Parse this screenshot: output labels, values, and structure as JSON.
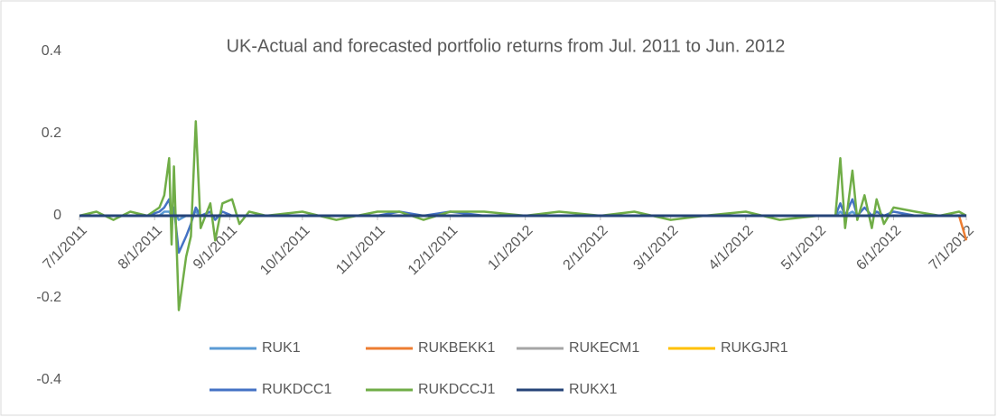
{
  "chart_data": {
    "type": "line",
    "title": "UK-Actual and forecasted portfolio returns from Jul. 2011 to Jun. 2012",
    "x": [
      "7/1/2011",
      "7/8/2011",
      "7/15/2011",
      "7/22/2011",
      "7/29/2011",
      "8/3/2011",
      "8/5/2011",
      "8/7/2011",
      "8/8/2011",
      "8/9/2011",
      "8/11/2011",
      "8/14/2011",
      "8/16/2011",
      "8/18/2011",
      "8/20/2011",
      "8/24/2011",
      "8/26/2011",
      "8/29/2011",
      "9/2/2011",
      "9/5/2011",
      "9/9/2011",
      "9/16/2011",
      "10/1/2011",
      "10/15/2011",
      "11/1/2011",
      "11/10/2011",
      "11/20/2011",
      "12/1/2011",
      "12/15/2011",
      "1/1/2012",
      "1/15/2012",
      "2/1/2012",
      "2/15/2012",
      "3/1/2012",
      "3/15/2012",
      "4/1/2012",
      "4/15/2012",
      "5/1/2012",
      "5/8/2012",
      "5/10/2012",
      "5/12/2012",
      "5/15/2012",
      "5/17/2012",
      "5/20/2012",
      "5/23/2012",
      "5/25/2012",
      "5/28/2012",
      "6/1/2012",
      "6/10/2012",
      "6/20/2012",
      "6/28/2012",
      "7/1/2012"
    ],
    "xticks": [
      "7/1/2011",
      "8/1/2011",
      "9/1/2011",
      "10/1/2011",
      "11/1/2011",
      "12/1/2011",
      "1/1/2012",
      "2/1/2012",
      "3/1/2012",
      "4/1/2012",
      "5/1/2012",
      "6/1/2012",
      "7/1/2012"
    ],
    "ylim": [
      -0.4,
      0.4
    ],
    "yticks": [
      0.4,
      0.2,
      0,
      -0.2,
      -0.4
    ],
    "grid": false,
    "series": [
      {
        "name": "RUK1",
        "color": "#5b9bd5",
        "values": [
          0,
          0,
          0,
          0,
          0,
          0,
          0.01,
          0.01,
          0,
          0.01,
          -0.01,
          0,
          0,
          0.01,
          0,
          0,
          0,
          0,
          0,
          0,
          0,
          0,
          0,
          0,
          0,
          0,
          0,
          0,
          0,
          0,
          0,
          0,
          0,
          0,
          0,
          0,
          0,
          0,
          0,
          0.01,
          0,
          0.01,
          0,
          0,
          0,
          0,
          0,
          0,
          0,
          0,
          0,
          0
        ]
      },
      {
        "name": "RUKBEKK1",
        "color": "#ed7d31",
        "values": [
          0,
          0,
          0,
          0,
          0,
          0,
          0,
          0,
          0,
          0,
          0,
          0,
          0,
          0,
          0,
          0,
          0,
          0,
          0,
          0,
          0,
          0,
          0,
          0,
          0,
          0,
          0,
          0,
          0,
          0,
          0,
          0,
          0,
          0,
          0,
          0,
          0,
          0,
          0,
          0,
          0,
          0,
          0,
          0,
          0,
          0,
          0,
          0,
          0,
          0,
          0,
          -0.06
        ]
      },
      {
        "name": "RUKECM1",
        "color": "#a5a5a5",
        "values": [
          0,
          0,
          0,
          0,
          0,
          0,
          0,
          0,
          0,
          0,
          0,
          0,
          0,
          0,
          0,
          0,
          0,
          0,
          0,
          0,
          0,
          0,
          0,
          0,
          0,
          0,
          0,
          0,
          0,
          0,
          0,
          0,
          0,
          0,
          0,
          0,
          0,
          0,
          0,
          0,
          0,
          0,
          0,
          0,
          0,
          0,
          0,
          0,
          0,
          0,
          0,
          0
        ]
      },
      {
        "name": "RUKGJR1",
        "color": "#ffc000",
        "values": [
          0,
          0,
          0,
          0,
          0,
          0,
          0,
          0,
          0,
          0,
          0,
          0,
          0,
          0,
          0,
          0,
          0,
          0,
          0,
          0,
          0,
          0,
          0,
          0,
          0,
          0,
          0,
          0,
          0,
          0,
          0,
          0,
          0,
          0,
          0,
          0,
          0,
          0,
          0,
          0,
          0,
          0,
          0,
          0,
          0,
          0,
          0,
          0,
          0,
          0,
          0,
          0
        ]
      },
      {
        "name": "RUKDCC1",
        "color": "#4472c4",
        "values": [
          0,
          0,
          0,
          0,
          0,
          0.01,
          0.02,
          0.04,
          0,
          0.02,
          -0.09,
          -0.05,
          -0.02,
          0.02,
          0,
          0.01,
          -0.01,
          0.01,
          0,
          0,
          0,
          0,
          0,
          0,
          0,
          0.01,
          0,
          0.01,
          0,
          0,
          0,
          0,
          0,
          0,
          0,
          0,
          0,
          0,
          0,
          0.03,
          0,
          0.04,
          0,
          0.02,
          0,
          0.01,
          0,
          0.01,
          0,
          0,
          0,
          0
        ]
      },
      {
        "name": "RUKDCCJ1",
        "color": "#70ad47",
        "values": [
          0,
          0.01,
          -0.01,
          0.01,
          0,
          0.02,
          0.05,
          0.14,
          -0.07,
          0.12,
          -0.23,
          -0.1,
          -0.05,
          0.23,
          -0.03,
          0.03,
          -0.06,
          0.03,
          0.04,
          -0.02,
          0.01,
          0,
          0.01,
          -0.01,
          0.01,
          0.01,
          -0.01,
          0.01,
          0.01,
          0,
          0.01,
          0,
          0.01,
          -0.01,
          0,
          0.01,
          -0.01,
          0,
          0,
          0.14,
          -0.03,
          0.11,
          -0.01,
          0.05,
          -0.03,
          0.04,
          -0.02,
          0.02,
          0.01,
          0,
          0.01,
          0
        ]
      },
      {
        "name": "RUKX1",
        "color": "#264478",
        "values": [
          0,
          0,
          0,
          0,
          0,
          0,
          0,
          0,
          0,
          0,
          0,
          0,
          0,
          0,
          0,
          0,
          0,
          0,
          0,
          0,
          0,
          0,
          0,
          0,
          0,
          0,
          0,
          0,
          0,
          0,
          0,
          0,
          0,
          0,
          0,
          0,
          0,
          0,
          0,
          0,
          0,
          0,
          0,
          0,
          0,
          0,
          0,
          0,
          0,
          0,
          0,
          0
        ]
      }
    ]
  }
}
